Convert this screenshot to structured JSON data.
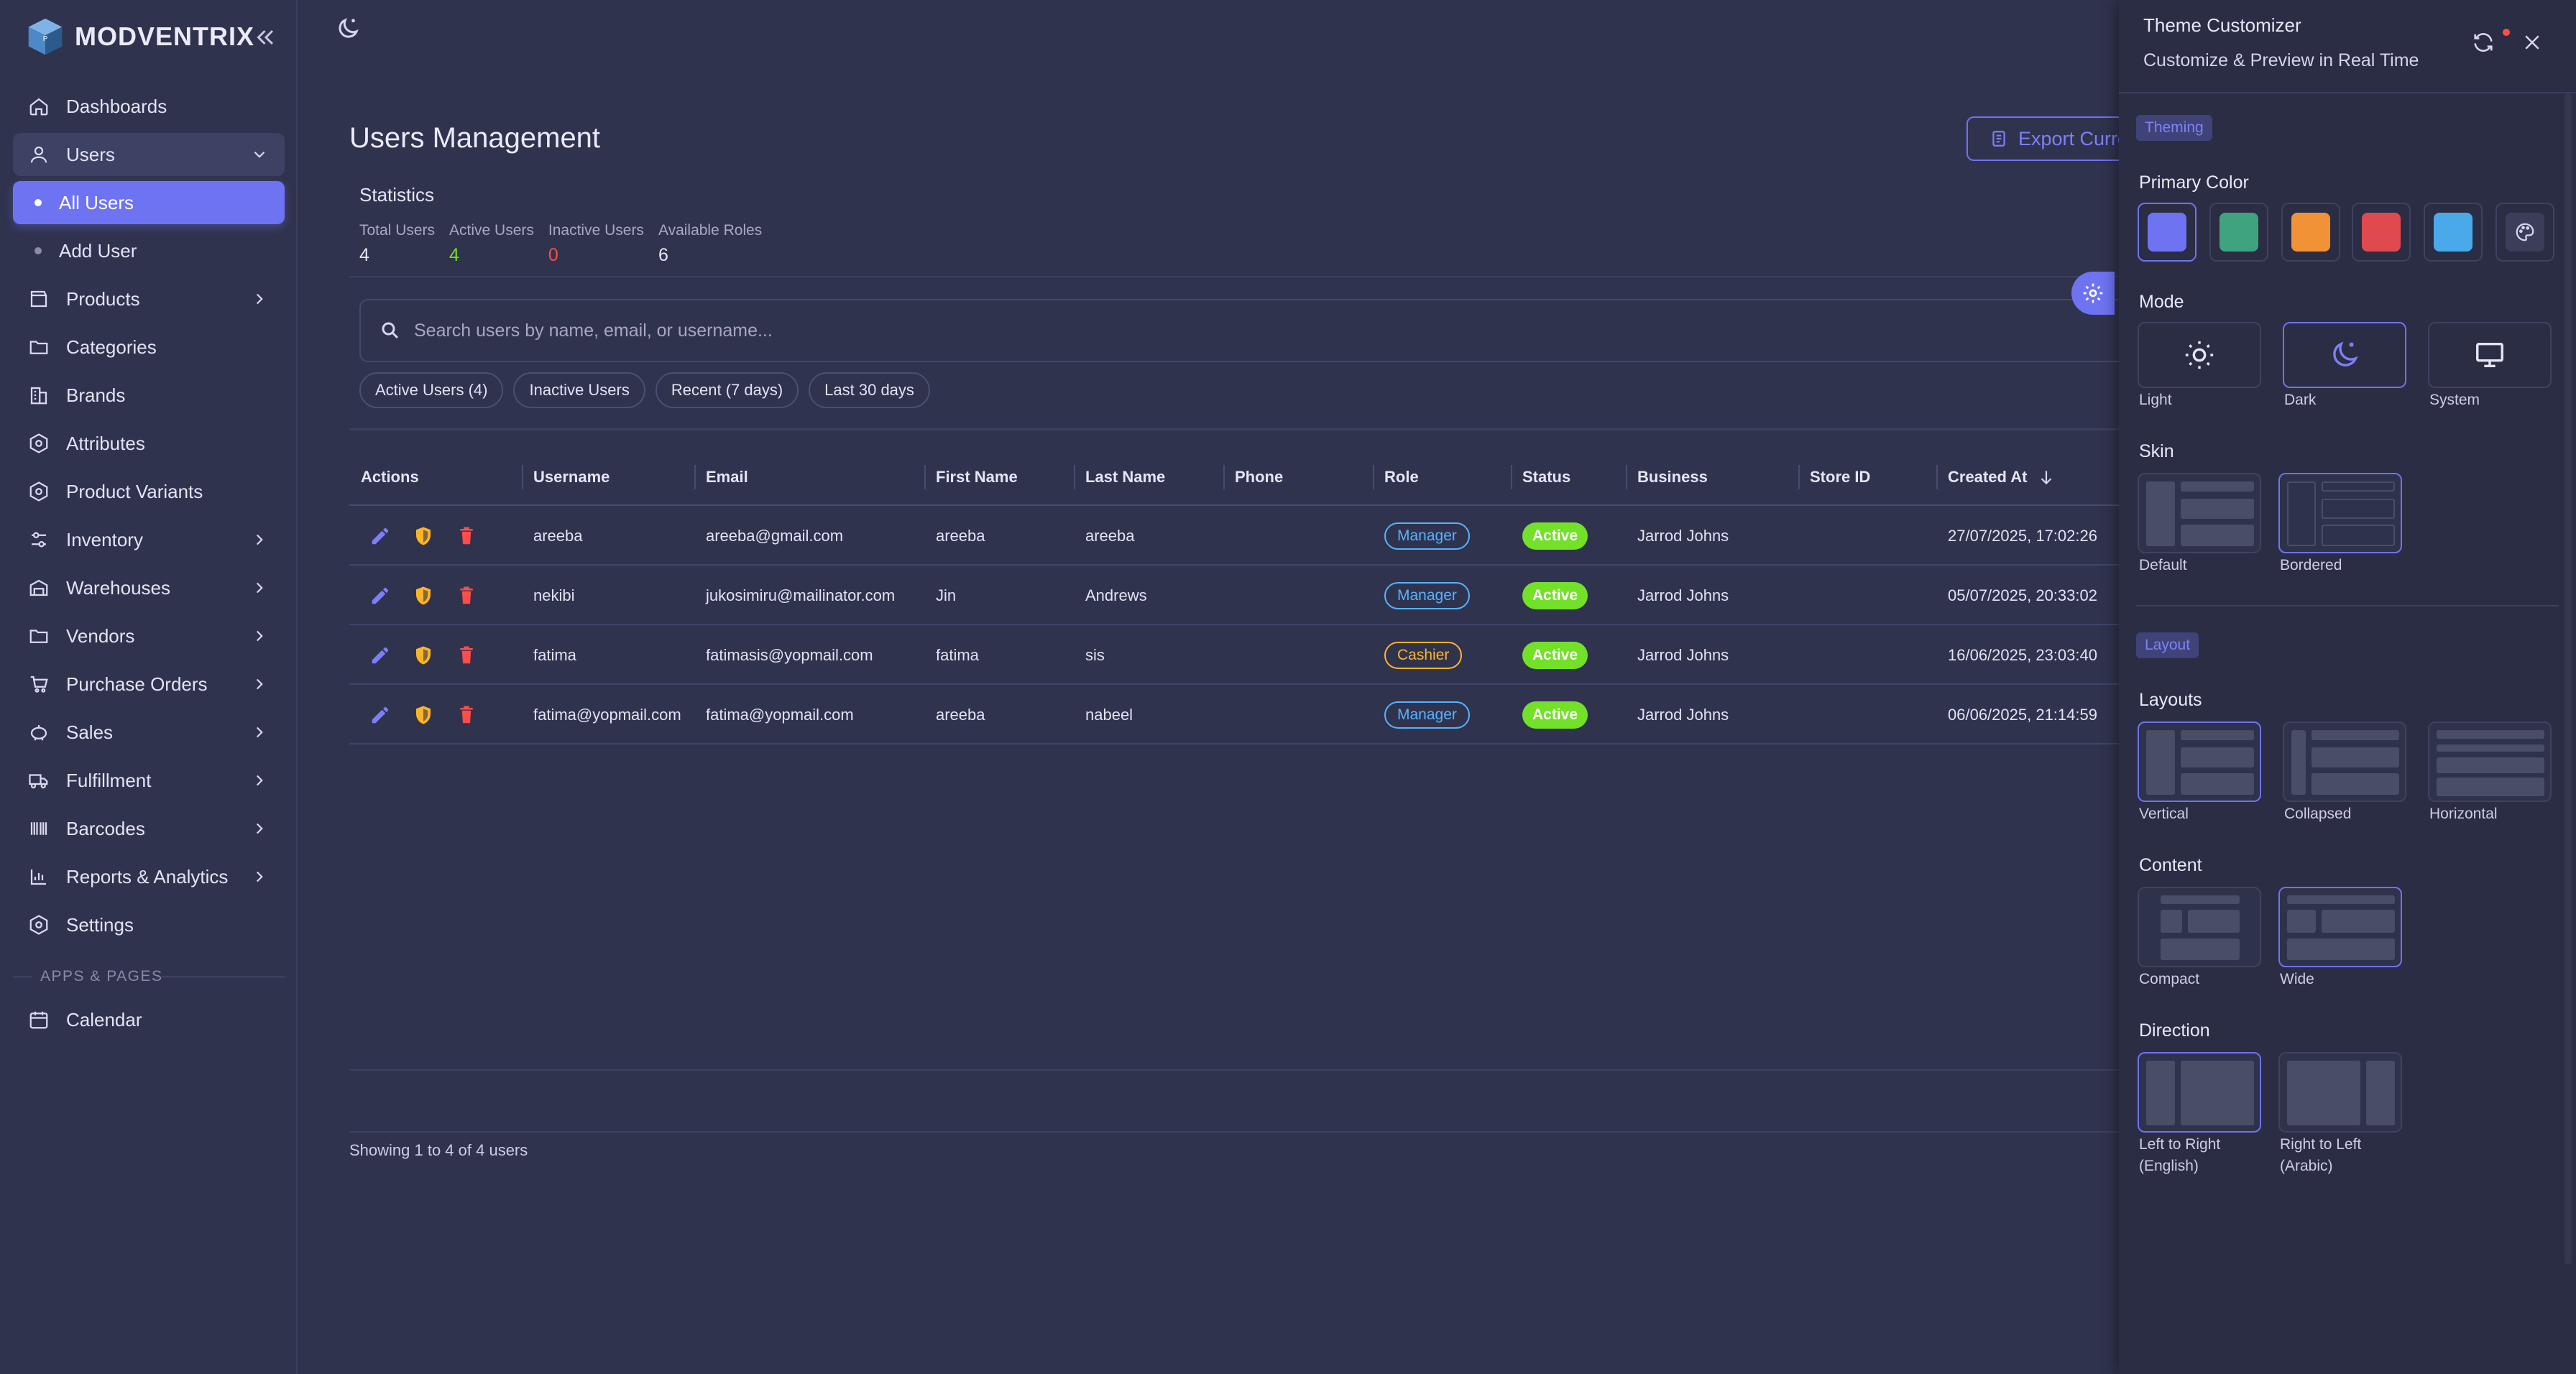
{
  "brand": {
    "name": "MODVENTRIX"
  },
  "sidebar": {
    "items": [
      {
        "label": "Dashboards",
        "icon": "home-icon"
      },
      {
        "label": "Users",
        "icon": "user-icon",
        "open": true
      },
      {
        "label": "Products",
        "icon": "box-icon",
        "chevron": true
      },
      {
        "label": "Categories",
        "icon": "folder-icon"
      },
      {
        "label": "Brands",
        "icon": "building-icon"
      },
      {
        "label": "Attributes",
        "icon": "hexagon-icon"
      },
      {
        "label": "Product Variants",
        "icon": "hexagon-icon"
      },
      {
        "label": "Inventory",
        "icon": "sliders-icon",
        "chevron": true
      },
      {
        "label": "Warehouses",
        "icon": "warehouse-icon",
        "chevron": true
      },
      {
        "label": "Vendors",
        "icon": "folder-icon",
        "chevron": true
      },
      {
        "label": "Purchase Orders",
        "icon": "cart-icon",
        "chevron": true
      },
      {
        "label": "Sales",
        "icon": "piggy-bank-icon",
        "chevron": true
      },
      {
        "label": "Fulfillment",
        "icon": "truck-icon",
        "chevron": true
      },
      {
        "label": "Barcodes",
        "icon": "barcode-icon",
        "chevron": true
      },
      {
        "label": "Reports & Analytics",
        "icon": "chart-icon",
        "chevron": true
      },
      {
        "label": "Settings",
        "icon": "gear-icon"
      }
    ],
    "sub_items": [
      {
        "label": "All Users",
        "active": true
      },
      {
        "label": "Add User",
        "active": false
      }
    ],
    "section_label": "APPS & PAGES",
    "apps": [
      {
        "label": "Calendar",
        "icon": "calendar-icon"
      }
    ]
  },
  "page": {
    "title": "Users Management",
    "export_label": "Export Curre",
    "stats_title": "Statistics",
    "stats": [
      {
        "label": "Total Users",
        "value": "4",
        "tone": "default"
      },
      {
        "label": "Active Users",
        "value": "4",
        "tone": "green"
      },
      {
        "label": "Inactive Users",
        "value": "0",
        "tone": "red"
      },
      {
        "label": "Available Roles",
        "value": "6",
        "tone": "default"
      }
    ],
    "search_placeholder": "Search users by name, email, or username...",
    "filters": [
      "Active Users (4)",
      "Inactive Users",
      "Recent (7 days)",
      "Last 30 days"
    ],
    "showing": "Showing 1 to 4 of 4 users"
  },
  "table": {
    "columns": [
      "Actions",
      "Username",
      "Email",
      "First Name",
      "Last Name",
      "Phone",
      "Role",
      "Status",
      "Business",
      "Store ID",
      "Created At"
    ],
    "rows": [
      {
        "username": "areeba",
        "email": "areeba@gmail.com",
        "first": "areeba",
        "last": "areeba",
        "phone": "",
        "role": "Manager",
        "status": "Active",
        "business": "Jarrod Johns",
        "store": "",
        "created": "27/07/2025, 17:02:26"
      },
      {
        "username": "nekibi",
        "email": "jukosimiru@mailinator.com",
        "first": "Jin",
        "last": "Andrews",
        "phone": "",
        "role": "Manager",
        "status": "Active",
        "business": "Jarrod Johns",
        "store": "",
        "created": "05/07/2025, 20:33:02"
      },
      {
        "username": "fatima",
        "email": "fatimasis@yopmail.com",
        "first": "fatima",
        "last": "sis",
        "phone": "",
        "role": "Cashier",
        "status": "Active",
        "business": "Jarrod Johns",
        "store": "",
        "created": "16/06/2025, 23:03:40"
      },
      {
        "username": "fatima@yopmail.com",
        "email": "fatima@yopmail.com",
        "first": "areeba",
        "last": "nabeel",
        "phone": "",
        "role": "Manager",
        "status": "Active",
        "business": "Jarrod Johns",
        "store": "",
        "created": "06/06/2025, 21:14:59"
      }
    ]
  },
  "customizer": {
    "title": "Theme Customizer",
    "subtitle": "Customize & Preview in Real Time",
    "theming_tag": "Theming",
    "primary_color_label": "Primary Color",
    "colors": [
      "#6e73f2",
      "#3fa37f",
      "#f29236",
      "#e04a4f",
      "#4aa9e8"
    ],
    "mode_label": "Mode",
    "modes": [
      "Light",
      "Dark",
      "System"
    ],
    "skin_label": "Skin",
    "skins": [
      "Default",
      "Bordered"
    ],
    "layout_tag": "Layout",
    "layouts_label": "Layouts",
    "layouts": [
      "Vertical",
      "Collapsed",
      "Horizontal"
    ],
    "content_label": "Content",
    "contents": [
      "Compact",
      "Wide"
    ],
    "direction_label": "Direction",
    "directions": [
      {
        "line1": "Left to Right",
        "line2": "(English)"
      },
      {
        "line1": "Right to Left",
        "line2": "(Arabic)"
      }
    ]
  }
}
